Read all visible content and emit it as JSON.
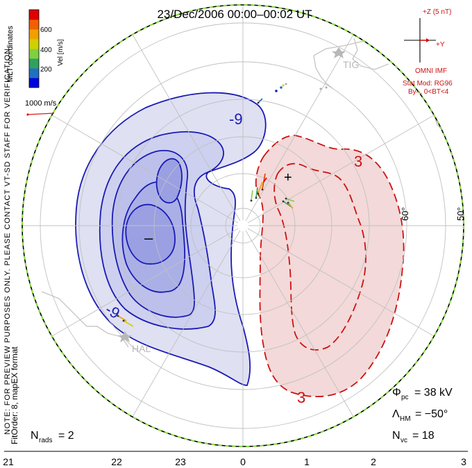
{
  "title": "23/Dec/2006 00:00–00:02 UT",
  "side_note_1": "NOTE: FOR PREVIEW PURPOSES ONLY. PLEASE CONTACT VT-SD STAFF FOR VERIFICATION.",
  "side_note_2": "FitOrder: 8, mapEX format",
  "colorbar": {
    "label": "Vel [m/s]",
    "ticks": [
      "600",
      "400",
      "200"
    ],
    "colors": [
      "#0000e0",
      "#2070c0",
      "#30a060",
      "#80d040",
      "#d0d000",
      "#f0a000",
      "#f06000",
      "#e00000"
    ]
  },
  "coord_label": "MLT coordinates",
  "ref_vector_label": "1000 m/s",
  "imf": {
    "z_label": "+Z (5 nT)",
    "y_label": "+Y",
    "source": "OMNI IMF",
    "model": "Stat Mod: RG96",
    "condition": "By–, 0<BT<4"
  },
  "stations": [
    "TIG",
    "HAL"
  ],
  "lat_labels": [
    "60°",
    "50°"
  ],
  "contour_labels": {
    "negative": [
      "-9",
      "-9"
    ],
    "positive": [
      "3",
      "3"
    ]
  },
  "extrema": {
    "min": "–",
    "max": "+"
  },
  "stats": {
    "phi_pc": {
      "symbol": "Φ",
      "sub": "pc",
      "value": "= 38 kV"
    },
    "lambda_hm": {
      "symbol": "Λ",
      "sub": "HM",
      "value": "= −50°"
    },
    "n_vc": {
      "symbol": "N",
      "sub": "vc",
      "value": "= 18"
    },
    "n_rads": {
      "symbol": "N",
      "sub": "rads",
      "value": "= 2"
    }
  },
  "mlt_axis": [
    "21",
    "22",
    "23",
    "0",
    "1",
    "2",
    "3"
  ]
}
